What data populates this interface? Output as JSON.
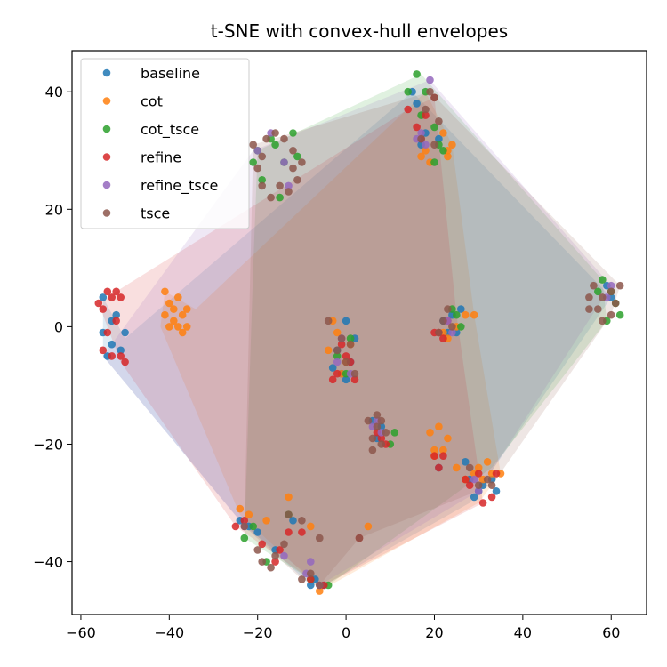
{
  "chart_data": {
    "type": "scatter",
    "title": "t-SNE with convex-hull envelopes",
    "xlabel": "",
    "ylabel": "",
    "xlim": [
      -62,
      68
    ],
    "ylim": [
      -49,
      47
    ],
    "xticks": [
      -60,
      -40,
      -20,
      0,
      20,
      40,
      60
    ],
    "yticks": [
      -40,
      -20,
      0,
      20,
      40
    ],
    "xtick_labels": [
      "−60",
      "−40",
      "−20",
      "0",
      "20",
      "40",
      "60"
    ],
    "ytick_labels": [
      "−40",
      "−20",
      "0",
      "20",
      "40"
    ],
    "grid": false,
    "legend_position": "top-left",
    "series": [
      {
        "name": "baseline",
        "color": "#1f77b4",
        "hull": [
          [
            -55,
            5
          ],
          [
            -50,
            -2
          ],
          [
            15,
            40
          ],
          [
            60,
            5
          ],
          [
            28,
            -30
          ],
          [
            -5,
            -44
          ],
          [
            -8,
            -44
          ],
          [
            -24,
            -33
          ],
          [
            -55,
            -5
          ]
        ],
        "points": [
          [
            -55,
            5
          ],
          [
            -55,
            -1
          ],
          [
            -54,
            -5
          ],
          [
            -53,
            -3
          ],
          [
            -52,
            2
          ],
          [
            -50,
            -1
          ],
          [
            -51,
            -4
          ],
          [
            -53,
            1
          ],
          [
            -1,
            -8
          ],
          [
            0,
            -9
          ],
          [
            1,
            -6
          ],
          [
            -2,
            -4
          ],
          [
            0,
            1
          ],
          [
            2,
            -2
          ],
          [
            -3,
            -7
          ],
          [
            15,
            40
          ],
          [
            18,
            33
          ],
          [
            17,
            31
          ],
          [
            16,
            38
          ],
          [
            21,
            32
          ],
          [
            22,
            1
          ],
          [
            24,
            2
          ],
          [
            25,
            -1
          ],
          [
            26,
            3
          ],
          [
            23,
            -1
          ],
          [
            7,
            -19
          ],
          [
            6,
            -16
          ],
          [
            8,
            -17
          ],
          [
            21,
            -24
          ],
          [
            27,
            -23
          ],
          [
            28,
            -26
          ],
          [
            30,
            -28
          ],
          [
            31,
            -27
          ],
          [
            33,
            -26
          ],
          [
            34,
            -28
          ],
          [
            29,
            -29
          ],
          [
            -24,
            -33
          ],
          [
            -22,
            -34
          ],
          [
            -20,
            -35
          ],
          [
            -16,
            -38
          ],
          [
            -12,
            -33
          ],
          [
            -8,
            -44
          ],
          [
            -7,
            -43
          ],
          [
            -5,
            -44
          ],
          [
            60,
            5
          ],
          [
            59,
            7
          ]
        ]
      },
      {
        "name": "cot",
        "color": "#ff7f0e",
        "hull": [
          [
            -41,
            6
          ],
          [
            -34,
            3
          ],
          [
            18,
            40
          ],
          [
            24,
            31
          ],
          [
            29,
            2
          ],
          [
            35,
            -25
          ],
          [
            30,
            -30
          ],
          [
            -6,
            -45
          ],
          [
            -8,
            -43
          ],
          [
            -24,
            -32
          ],
          [
            -42,
            0
          ]
        ],
        "points": [
          [
            -41,
            6
          ],
          [
            -40,
            4
          ],
          [
            -39,
            3
          ],
          [
            -38,
            5
          ],
          [
            -37,
            2
          ],
          [
            -36,
            3
          ],
          [
            -38,
            0
          ],
          [
            -40,
            0
          ],
          [
            -39,
            1
          ],
          [
            -37,
            -1
          ],
          [
            -41,
            2
          ],
          [
            -36,
            0
          ],
          [
            -3,
            1
          ],
          [
            -2,
            -1
          ],
          [
            -1,
            -8
          ],
          [
            0,
            -6
          ],
          [
            1,
            -3
          ],
          [
            -4,
            -4
          ],
          [
            17,
            29
          ],
          [
            18,
            30
          ],
          [
            19,
            28
          ],
          [
            22,
            33
          ],
          [
            23,
            30
          ],
          [
            24,
            31
          ],
          [
            23,
            29
          ],
          [
            22,
            -1
          ],
          [
            23,
            -2
          ],
          [
            25,
            0
          ],
          [
            27,
            2
          ],
          [
            29,
            2
          ],
          [
            19,
            -18
          ],
          [
            21,
            -17
          ],
          [
            20,
            -21
          ],
          [
            22,
            -21
          ],
          [
            23,
            -19
          ],
          [
            20,
            -22
          ],
          [
            25,
            -24
          ],
          [
            27,
            -26
          ],
          [
            30,
            -24
          ],
          [
            32,
            -23
          ],
          [
            33,
            -25
          ],
          [
            35,
            -25
          ],
          [
            31,
            -26
          ],
          [
            29,
            -25
          ],
          [
            -13,
            -29
          ],
          [
            -18,
            -33
          ],
          [
            -8,
            -34
          ],
          [
            5,
            -34
          ],
          [
            -6,
            -45
          ],
          [
            -24,
            -31
          ],
          [
            -22,
            -32
          ]
        ]
      },
      {
        "name": "cot_tsce",
        "color": "#2ca02c",
        "hull": [
          [
            -20,
            30
          ],
          [
            17,
            43
          ],
          [
            58,
            8
          ],
          [
            59,
            1
          ],
          [
            33,
            -24
          ],
          [
            -4,
            -44
          ],
          [
            -8,
            -43
          ],
          [
            -23,
            -36
          ],
          [
            -21,
            10
          ]
        ],
        "points": [
          [
            -21,
            28
          ],
          [
            -20,
            30
          ],
          [
            -19,
            25
          ],
          [
            -17,
            32
          ],
          [
            -15,
            22
          ],
          [
            -14,
            28
          ],
          [
            -12,
            33
          ],
          [
            -11,
            29
          ],
          [
            -16,
            31
          ],
          [
            14,
            40
          ],
          [
            16,
            43
          ],
          [
            18,
            40
          ],
          [
            17,
            36
          ],
          [
            20,
            34
          ],
          [
            21,
            31
          ],
          [
            22,
            30
          ],
          [
            20,
            28
          ],
          [
            24,
            3
          ],
          [
            25,
            2
          ],
          [
            26,
            0
          ],
          [
            1,
            -2
          ],
          [
            -2,
            -5
          ],
          [
            0,
            -8
          ],
          [
            11,
            -18
          ],
          [
            10,
            -20
          ],
          [
            -23,
            -36
          ],
          [
            -21,
            -34
          ],
          [
            -18,
            -40
          ],
          [
            -13,
            -32
          ],
          [
            -8,
            -43
          ],
          [
            -4,
            -44
          ],
          [
            58,
            8
          ],
          [
            59,
            1
          ],
          [
            61,
            4
          ],
          [
            60,
            6
          ],
          [
            62,
            2
          ],
          [
            57,
            6
          ]
        ]
      },
      {
        "name": "refine",
        "color": "#d62728",
        "hull": [
          [
            -56,
            4
          ],
          [
            -52,
            6
          ],
          [
            14,
            37
          ],
          [
            20,
            39
          ],
          [
            25,
            2
          ],
          [
            31,
            -30
          ],
          [
            -5,
            -44
          ],
          [
            -8,
            -43
          ],
          [
            -25,
            -34
          ],
          [
            -51,
            -6
          ]
        ],
        "points": [
          [
            -56,
            4
          ],
          [
            -54,
            6
          ],
          [
            -52,
            6
          ],
          [
            -53,
            5
          ],
          [
            -55,
            3
          ],
          [
            -52,
            1
          ],
          [
            -51,
            -5
          ],
          [
            -53,
            -5
          ],
          [
            -50,
            -6
          ],
          [
            -55,
            -4
          ],
          [
            -54,
            -1
          ],
          [
            -51,
            5
          ],
          [
            14,
            37
          ],
          [
            16,
            34
          ],
          [
            17,
            32
          ],
          [
            20,
            39
          ],
          [
            18,
            36
          ],
          [
            20,
            -1
          ],
          [
            21,
            -1
          ],
          [
            22,
            -2
          ],
          [
            23,
            1
          ],
          [
            0,
            -5
          ],
          [
            -2,
            -8
          ],
          [
            2,
            -9
          ],
          [
            -3,
            -9
          ],
          [
            1,
            -6
          ],
          [
            -1,
            -3
          ],
          [
            8,
            -19
          ],
          [
            9,
            -20
          ],
          [
            7,
            -18
          ],
          [
            20,
            -22
          ],
          [
            21,
            -24
          ],
          [
            22,
            -22
          ],
          [
            27,
            -26
          ],
          [
            28,
            -27
          ],
          [
            31,
            -30
          ],
          [
            33,
            -29
          ],
          [
            30,
            -25
          ],
          [
            34,
            -25
          ],
          [
            -25,
            -34
          ],
          [
            -23,
            -33
          ],
          [
            -19,
            -37
          ],
          [
            -16,
            -40
          ],
          [
            -15,
            -38
          ],
          [
            -10,
            -35
          ],
          [
            -8,
            -43
          ],
          [
            -5,
            -44
          ],
          [
            3,
            -36
          ],
          [
            -13,
            -35
          ]
        ]
      },
      {
        "name": "refine_tsce",
        "color": "#9467bd",
        "hull": [
          [
            -55,
            -5
          ],
          [
            -21,
            30
          ],
          [
            19,
            42
          ],
          [
            60,
            7
          ],
          [
            30,
            -28
          ],
          [
            -6,
            -44
          ],
          [
            -9,
            -42
          ],
          [
            -23,
            -34
          ]
        ],
        "points": [
          [
            -20,
            30
          ],
          [
            -14,
            28
          ],
          [
            -17,
            33
          ],
          [
            -13,
            24
          ],
          [
            19,
            42
          ],
          [
            17,
            33
          ],
          [
            18,
            31
          ],
          [
            16,
            32
          ],
          [
            23,
            1
          ],
          [
            24,
            -1
          ],
          [
            -2,
            -6
          ],
          [
            -1,
            -2
          ],
          [
            1,
            -8
          ],
          [
            6,
            -17
          ],
          [
            7,
            -16
          ],
          [
            8,
            -18
          ],
          [
            29,
            -26
          ],
          [
            30,
            -28
          ],
          [
            -23,
            -34
          ],
          [
            -14,
            -39
          ],
          [
            -9,
            -42
          ],
          [
            -6,
            -44
          ],
          [
            -8,
            -40
          ],
          [
            60,
            7
          ],
          [
            59,
            5
          ]
        ]
      },
      {
        "name": "tsce",
        "color": "#8c564b",
        "hull": [
          [
            -21,
            31
          ],
          [
            19,
            40
          ],
          [
            62,
            7
          ],
          [
            60,
            2
          ],
          [
            33,
            -27
          ],
          [
            3,
            -36
          ],
          [
            -6,
            -44
          ],
          [
            -10,
            -43
          ],
          [
            -23,
            -34
          ]
        ],
        "points": [
          [
            -21,
            31
          ],
          [
            -20,
            27
          ],
          [
            -19,
            24
          ],
          [
            -18,
            32
          ],
          [
            -16,
            33
          ],
          [
            -14,
            32
          ],
          [
            -12,
            30
          ],
          [
            -11,
            25
          ],
          [
            -10,
            28
          ],
          [
            -17,
            22
          ],
          [
            -15,
            24
          ],
          [
            -13,
            23
          ],
          [
            -19,
            29
          ],
          [
            -12,
            27
          ],
          [
            19,
            40
          ],
          [
            20,
            39
          ],
          [
            18,
            37
          ],
          [
            21,
            35
          ],
          [
            17,
            32
          ],
          [
            20,
            31
          ],
          [
            55,
            5
          ],
          [
            56,
            7
          ],
          [
            57,
            3
          ],
          [
            58,
            1
          ],
          [
            60,
            2
          ],
          [
            61,
            4
          ],
          [
            62,
            7
          ],
          [
            58,
            5
          ],
          [
            55,
            3
          ],
          [
            60,
            6
          ],
          [
            21,
            -1
          ],
          [
            22,
            1
          ],
          [
            23,
            3
          ],
          [
            24,
            0
          ],
          [
            -4,
            1
          ],
          [
            -2,
            -4
          ],
          [
            0,
            -6
          ],
          [
            2,
            -8
          ],
          [
            -1,
            -2
          ],
          [
            1,
            -3
          ],
          [
            5,
            -16
          ],
          [
            6,
            -19
          ],
          [
            7,
            -17
          ],
          [
            8,
            -20
          ],
          [
            9,
            -18
          ],
          [
            7,
            -15
          ],
          [
            6,
            -21
          ],
          [
            8,
            -16
          ],
          [
            28,
            -24
          ],
          [
            30,
            -27
          ],
          [
            32,
            -26
          ],
          [
            33,
            -27
          ],
          [
            -23,
            -34
          ],
          [
            -20,
            -38
          ],
          [
            -19,
            -40
          ],
          [
            -17,
            -41
          ],
          [
            -16,
            -39
          ],
          [
            -14,
            -37
          ],
          [
            -13,
            -32
          ],
          [
            -10,
            -33
          ],
          [
            -6,
            -36
          ],
          [
            -8,
            -42
          ],
          [
            -6,
            -44
          ],
          [
            -10,
            -43
          ],
          [
            3,
            -36
          ]
        ]
      }
    ]
  }
}
